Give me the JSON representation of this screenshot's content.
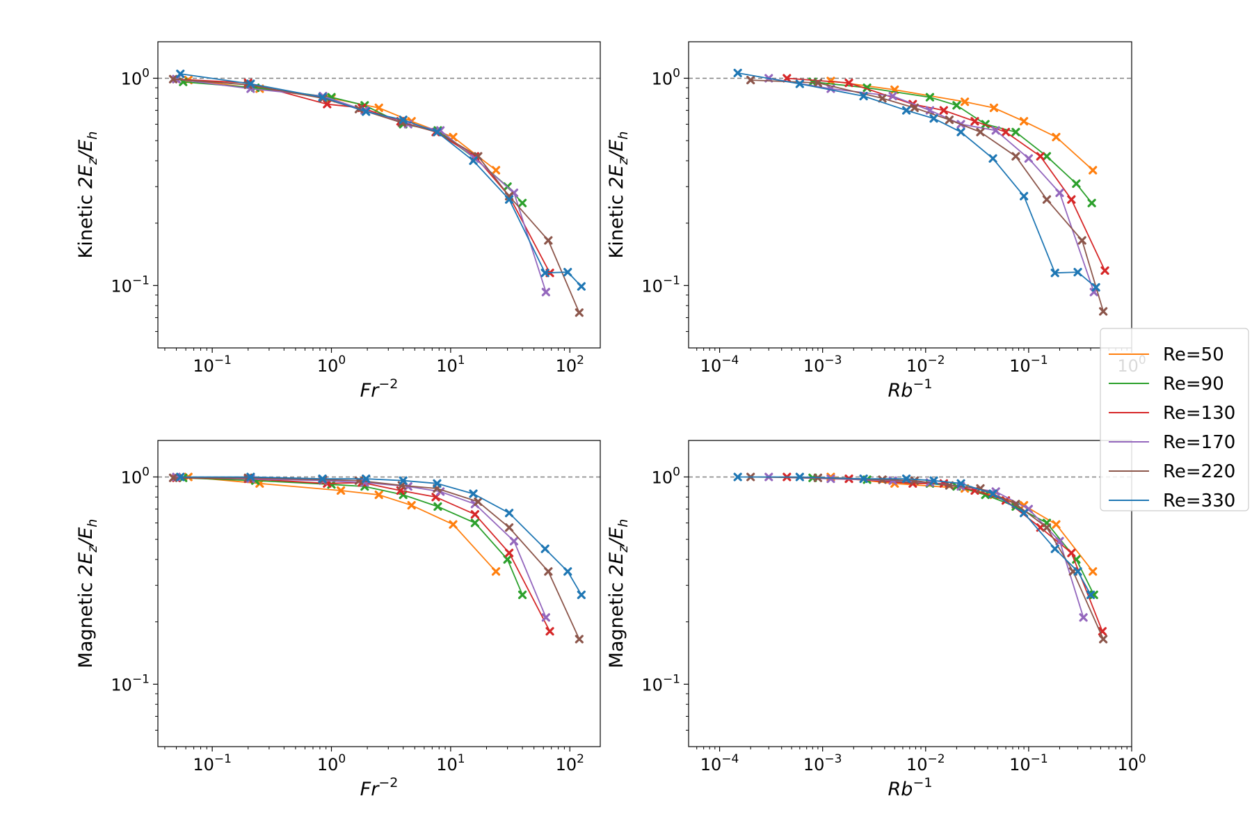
{
  "figure": {
    "title": ""
  },
  "chart_data": [
    {
      "id": "kinetic-fr",
      "type": "line",
      "ylabel": {
        "prefix": "Kinetic",
        "expr": "2E",
        "sub1": "z",
        "slash": "/E",
        "sub2": "h"
      },
      "xlabel": {
        "base": "Fr",
        "sup": "−2"
      },
      "xscale": "log",
      "yscale": "log",
      "xlim": [
        0.035,
        180
      ],
      "ylim": [
        0.05,
        1.5
      ],
      "xticks": [
        {
          "v": 0.1,
          "b": "10",
          "e": "−1"
        },
        {
          "v": 1,
          "b": "10",
          "e": "0"
        },
        {
          "v": 10,
          "b": "10",
          "e": "1"
        },
        {
          "v": 100,
          "b": "10",
          "e": "2"
        }
      ],
      "yticks": [
        {
          "v": 0.1,
          "b": "10",
          "e": "−1"
        },
        {
          "v": 1,
          "b": "10",
          "e": "0"
        }
      ],
      "reference_line": 1.0,
      "series": [
        {
          "name": "Re=50",
          "x": [
            0.063,
            0.25,
            1.0,
            2.5,
            4.7,
            10.5,
            24
          ],
          "y": [
            0.98,
            0.89,
            0.8,
            0.72,
            0.62,
            0.52,
            0.36
          ]
        },
        {
          "name": "Re=90",
          "x": [
            0.057,
            0.23,
            1.0,
            1.9,
            4.0,
            7.8,
            16,
            30,
            40
          ],
          "y": [
            0.96,
            0.9,
            0.81,
            0.74,
            0.6,
            0.56,
            0.41,
            0.3,
            0.25
          ]
        },
        {
          "name": "Re=130",
          "x": [
            0.05,
            0.2,
            0.92,
            1.8,
            3.8,
            7.5,
            16,
            31,
            68
          ],
          "y": [
            0.99,
            0.95,
            0.75,
            0.72,
            0.62,
            0.55,
            0.42,
            0.27,
            0.115
          ]
        },
        {
          "name": "Re=170",
          "x": [
            0.05,
            0.21,
            0.85,
            1.9,
            4.4,
            8.2,
            16,
            34,
            63
          ],
          "y": [
            0.99,
            0.89,
            0.82,
            0.7,
            0.6,
            0.56,
            0.41,
            0.28,
            0.093
          ]
        },
        {
          "name": "Re=220",
          "x": [
            0.047,
            0.2,
            0.85,
            1.7,
            3.9,
            7.7,
            17,
            31,
            66,
            120
          ],
          "y": [
            0.99,
            0.93,
            0.8,
            0.71,
            0.61,
            0.55,
            0.42,
            0.27,
            0.165,
            0.074
          ]
        },
        {
          "name": "Re=330",
          "x": [
            0.054,
            0.21,
            0.84,
            1.95,
            4.0,
            7.7,
            15.5,
            31,
            62,
            96,
            125
          ],
          "y": [
            1.05,
            0.94,
            0.81,
            0.69,
            0.63,
            0.55,
            0.4,
            0.26,
            0.115,
            0.116,
            0.099
          ]
        }
      ]
    },
    {
      "id": "kinetic-rb",
      "type": "line",
      "ylabel": {
        "prefix": "Kinetic",
        "expr": "2E",
        "sub1": "z",
        "slash": "/E",
        "sub2": "h"
      },
      "xlabel": {
        "base": "Rb",
        "sup": "−1"
      },
      "xscale": "log",
      "yscale": "log",
      "xlim": [
        5e-05,
        1.0
      ],
      "ylim": [
        0.05,
        1.5
      ],
      "xticks": [
        {
          "v": 0.0001,
          "b": "10",
          "e": "−4"
        },
        {
          "v": 0.001,
          "b": "10",
          "e": "−3"
        },
        {
          "v": 0.01,
          "b": "10",
          "e": "−2"
        },
        {
          "v": 0.1,
          "b": "10",
          "e": "−1"
        },
        {
          "v": 1,
          "b": "10",
          "e": "0"
        }
      ],
      "yticks": [
        {
          "v": 0.1,
          "b": "10",
          "e": "−1"
        },
        {
          "v": 1,
          "b": "10",
          "e": "0"
        }
      ],
      "reference_line": 1.0,
      "series": [
        {
          "name": "Re=50",
          "x": [
            0.0012,
            0.005,
            0.024,
            0.046,
            0.09,
            0.185,
            0.42
          ],
          "y": [
            0.97,
            0.88,
            0.77,
            0.72,
            0.62,
            0.52,
            0.36
          ]
        },
        {
          "name": "Re=90",
          "x": [
            0.0008,
            0.0027,
            0.011,
            0.02,
            0.038,
            0.075,
            0.15,
            0.29,
            0.41
          ],
          "y": [
            0.96,
            0.9,
            0.81,
            0.74,
            0.6,
            0.55,
            0.42,
            0.31,
            0.25
          ]
        },
        {
          "name": "Re=130",
          "x": [
            0.00045,
            0.0018,
            0.0075,
            0.015,
            0.03,
            0.06,
            0.13,
            0.26,
            0.55
          ],
          "y": [
            1.0,
            0.95,
            0.75,
            0.7,
            0.62,
            0.55,
            0.42,
            0.26,
            0.118
          ]
        },
        {
          "name": "Re=170",
          "x": [
            0.0003,
            0.0012,
            0.0048,
            0.011,
            0.022,
            0.048,
            0.1,
            0.2,
            0.43
          ],
          "y": [
            1.0,
            0.89,
            0.82,
            0.7,
            0.6,
            0.56,
            0.41,
            0.28,
            0.093
          ]
        },
        {
          "name": "Re=220",
          "x": [
            0.0002,
            0.0009,
            0.0038,
            0.0078,
            0.017,
            0.034,
            0.075,
            0.15,
            0.33,
            0.53
          ],
          "y": [
            0.98,
            0.95,
            0.8,
            0.72,
            0.63,
            0.55,
            0.42,
            0.26,
            0.165,
            0.075
          ]
        },
        {
          "name": "Re=330",
          "x": [
            0.00015,
            0.0006,
            0.0025,
            0.0065,
            0.012,
            0.022,
            0.045,
            0.09,
            0.18,
            0.3,
            0.45
          ],
          "y": [
            1.06,
            0.94,
            0.82,
            0.7,
            0.64,
            0.55,
            0.41,
            0.27,
            0.115,
            0.116,
            0.098
          ]
        }
      ]
    },
    {
      "id": "magnetic-fr",
      "type": "line",
      "ylabel": {
        "prefix": "Magnetic",
        "expr": "2E",
        "sub1": "z",
        "slash": "/E",
        "sub2": "h"
      },
      "xlabel": {
        "base": "Fr",
        "sup": "−2"
      },
      "xscale": "log",
      "yscale": "log",
      "xlim": [
        0.035,
        180
      ],
      "ylim": [
        0.05,
        1.5
      ],
      "xticks": [
        {
          "v": 0.1,
          "b": "10",
          "e": "−1"
        },
        {
          "v": 1,
          "b": "10",
          "e": "0"
        },
        {
          "v": 10,
          "b": "10",
          "e": "1"
        },
        {
          "v": 100,
          "b": "10",
          "e": "2"
        }
      ],
      "yticks": [
        {
          "v": 0.1,
          "b": "10",
          "e": "−1"
        },
        {
          "v": 1,
          "b": "10",
          "e": "0"
        }
      ],
      "reference_line": 1.0,
      "series": [
        {
          "name": "Re=50",
          "x": [
            0.063,
            0.25,
            1.2,
            2.5,
            4.7,
            10.5,
            24
          ],
          "y": [
            1.0,
            0.93,
            0.86,
            0.82,
            0.73,
            0.59,
            0.35
          ]
        },
        {
          "name": "Re=90",
          "x": [
            0.057,
            0.23,
            1.0,
            1.9,
            4.0,
            7.8,
            16,
            30,
            40
          ],
          "y": [
            0.99,
            0.96,
            0.92,
            0.9,
            0.82,
            0.72,
            0.6,
            0.4,
            0.27
          ]
        },
        {
          "name": "Re=130",
          "x": [
            0.05,
            0.2,
            0.92,
            1.8,
            3.8,
            7.5,
            16,
            31,
            68
          ],
          "y": [
            0.99,
            0.98,
            0.93,
            0.94,
            0.86,
            0.8,
            0.66,
            0.43,
            0.18
          ]
        },
        {
          "name": "Re=170",
          "x": [
            0.05,
            0.21,
            0.85,
            1.9,
            4.4,
            8.2,
            16,
            34,
            63
          ],
          "y": [
            1.0,
            0.98,
            0.96,
            0.94,
            0.9,
            0.85,
            0.74,
            0.49,
            0.21
          ]
        },
        {
          "name": "Re=220",
          "x": [
            0.047,
            0.2,
            0.85,
            1.7,
            3.9,
            7.7,
            17,
            31,
            66,
            120
          ],
          "y": [
            0.99,
            0.99,
            0.97,
            0.96,
            0.91,
            0.88,
            0.76,
            0.57,
            0.35,
            0.165
          ]
        },
        {
          "name": "Re=330",
          "x": [
            0.054,
            0.21,
            0.84,
            1.95,
            4.0,
            7.7,
            15.5,
            31,
            62,
            96,
            125
          ],
          "y": [
            1.0,
            1.0,
            0.98,
            0.98,
            0.96,
            0.93,
            0.83,
            0.67,
            0.45,
            0.35,
            0.27
          ]
        }
      ]
    },
    {
      "id": "magnetic-rb",
      "type": "line",
      "ylabel": {
        "prefix": "Magnetic",
        "expr": "2E",
        "sub1": "z",
        "slash": "/E",
        "sub2": "h"
      },
      "xlabel": {
        "base": "Rb",
        "sup": "−1"
      },
      "xscale": "log",
      "yscale": "log",
      "xlim": [
        5e-05,
        1.0
      ],
      "ylim": [
        0.05,
        1.5
      ],
      "xticks": [
        {
          "v": 0.0001,
          "b": "10",
          "e": "−4"
        },
        {
          "v": 0.001,
          "b": "10",
          "e": "−3"
        },
        {
          "v": 0.01,
          "b": "10",
          "e": "−2"
        },
        {
          "v": 0.1,
          "b": "10",
          "e": "−1"
        },
        {
          "v": 1,
          "b": "10",
          "e": "0"
        }
      ],
      "yticks": [
        {
          "v": 0.1,
          "b": "10",
          "e": "−1"
        },
        {
          "v": 1,
          "b": "10",
          "e": "0"
        }
      ],
      "reference_line": 1.0,
      "series": [
        {
          "name": "Re=50",
          "x": [
            0.0012,
            0.005,
            0.024,
            0.046,
            0.09,
            0.185,
            0.42
          ],
          "y": [
            1.0,
            0.93,
            0.88,
            0.82,
            0.73,
            0.59,
            0.35
          ]
        },
        {
          "name": "Re=90",
          "x": [
            0.0008,
            0.0027,
            0.011,
            0.02,
            0.038,
            0.075,
            0.15,
            0.29,
            0.43
          ],
          "y": [
            0.99,
            0.97,
            0.93,
            0.9,
            0.82,
            0.72,
            0.6,
            0.4,
            0.27
          ]
        },
        {
          "name": "Re=130",
          "x": [
            0.00045,
            0.0018,
            0.0075,
            0.015,
            0.03,
            0.06,
            0.13,
            0.26,
            0.52
          ],
          "y": [
            1.0,
            0.98,
            0.93,
            0.93,
            0.86,
            0.77,
            0.57,
            0.43,
            0.18
          ]
        },
        {
          "name": "Re=170",
          "x": [
            0.0003,
            0.0012,
            0.0048,
            0.011,
            0.022,
            0.048,
            0.1,
            0.2,
            0.34
          ],
          "y": [
            1.0,
            0.98,
            0.96,
            0.94,
            0.9,
            0.85,
            0.7,
            0.49,
            0.21
          ]
        },
        {
          "name": "Re=220",
          "x": [
            0.0002,
            0.0009,
            0.0038,
            0.0078,
            0.017,
            0.034,
            0.075,
            0.15,
            0.27,
            0.53
          ],
          "y": [
            1.0,
            0.99,
            0.97,
            0.96,
            0.91,
            0.88,
            0.74,
            0.57,
            0.35,
            0.165
          ]
        },
        {
          "name": "Re=330",
          "x": [
            0.00015,
            0.0006,
            0.0025,
            0.0065,
            0.012,
            0.022,
            0.045,
            0.09,
            0.18,
            0.3,
            0.4
          ],
          "y": [
            1.0,
            1.0,
            0.98,
            0.98,
            0.96,
            0.93,
            0.83,
            0.67,
            0.45,
            0.35,
            0.27
          ]
        }
      ]
    }
  ],
  "legend": {
    "placement": "right-middle",
    "items": [
      {
        "label": "Re=50",
        "color": "#ff7f0e"
      },
      {
        "label": "Re=90",
        "color": "#2ca02c"
      },
      {
        "label": "Re=130",
        "color": "#d62728"
      },
      {
        "label": "Re=170",
        "color": "#9467bd"
      },
      {
        "label": "Re=220",
        "color": "#8c564b"
      },
      {
        "label": "Re=330",
        "color": "#1f77b4"
      }
    ]
  }
}
